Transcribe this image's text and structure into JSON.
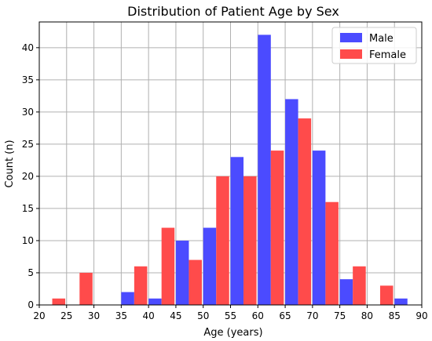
{
  "chart_data": {
    "type": "bar",
    "title": "Distribution of Patient Age by Sex",
    "xlabel": "Age (years)",
    "ylabel": "Count (n)",
    "xlim": [
      20,
      90
    ],
    "ylim": [
      0,
      44
    ],
    "xticks": [
      20,
      25,
      30,
      35,
      40,
      45,
      50,
      55,
      60,
      65,
      70,
      75,
      80,
      85,
      90
    ],
    "yticks": [
      0,
      5,
      10,
      15,
      20,
      25,
      30,
      35,
      40
    ],
    "grid": true,
    "legend_position": "top-right",
    "bin_width": 5,
    "categories": [
      "20-25",
      "25-30",
      "30-35",
      "35-40",
      "40-45",
      "45-50",
      "50-55",
      "55-60",
      "60-65",
      "65-70",
      "70-75",
      "75-80",
      "80-85",
      "85-90"
    ],
    "bin_starts": [
      20,
      25,
      30,
      35,
      40,
      45,
      50,
      55,
      60,
      65,
      70,
      75,
      80,
      85
    ],
    "series": [
      {
        "name": "Male",
        "color": "#4b4bff",
        "values": [
          0,
          0,
          0,
          2,
          1,
          10,
          12,
          23,
          42,
          32,
          24,
          4,
          0,
          1
        ]
      },
      {
        "name": "Female",
        "color": "#ff4b4b",
        "values": [
          1,
          5,
          0,
          6,
          12,
          7,
          20,
          20,
          24,
          29,
          16,
          6,
          3,
          0
        ]
      }
    ]
  }
}
